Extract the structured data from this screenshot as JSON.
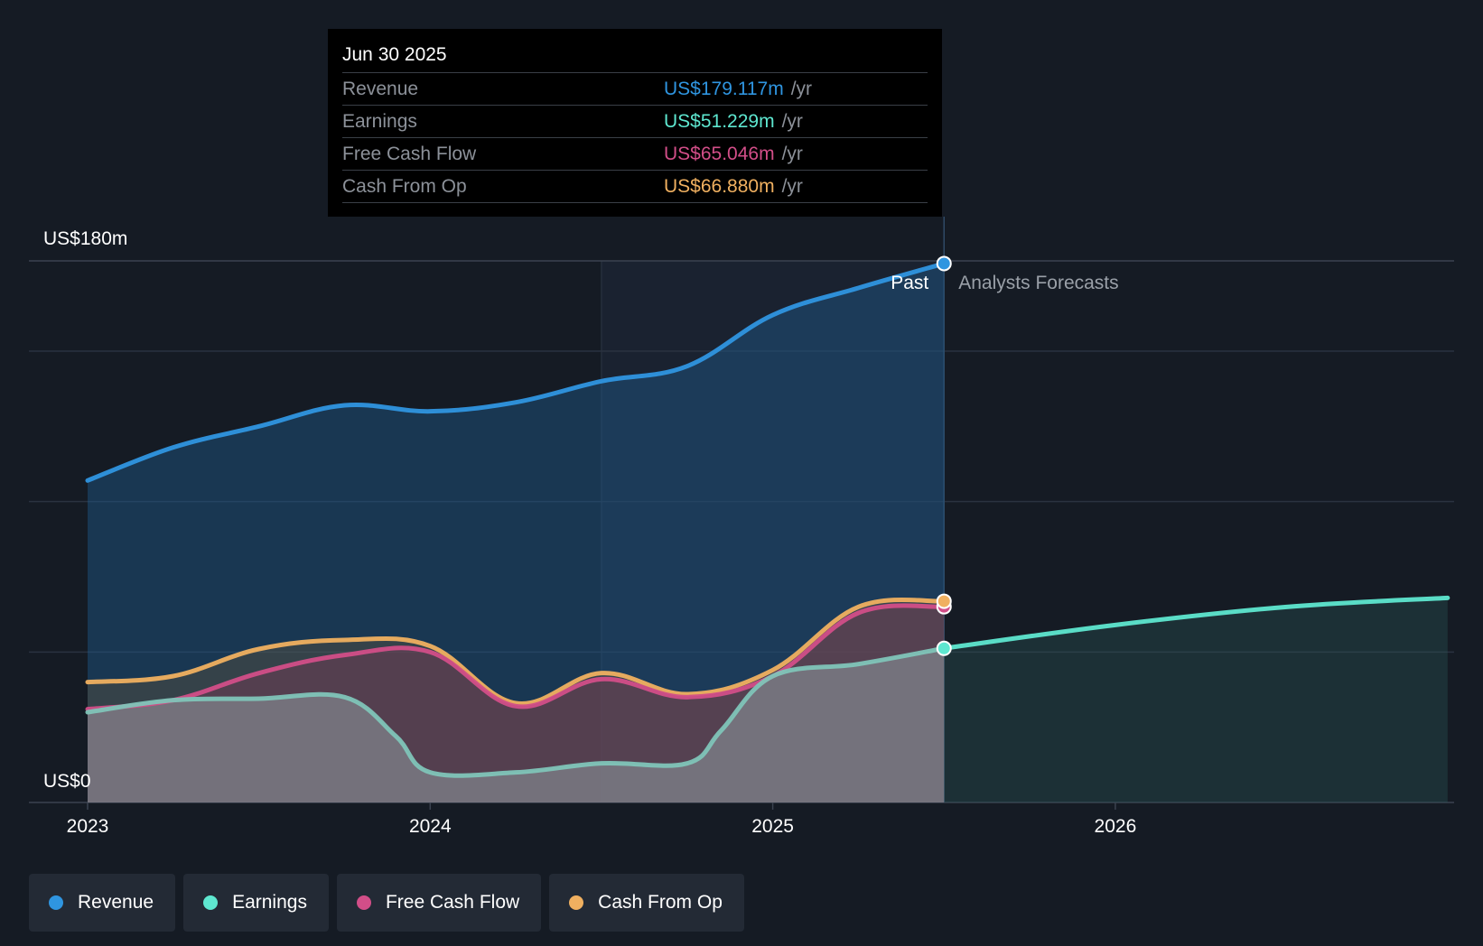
{
  "tooltip": {
    "date": "Jun 30 2025",
    "rows": [
      {
        "label": "Revenue",
        "value": "US$179.117m",
        "unit": "/yr",
        "color": "#2f95e0"
      },
      {
        "label": "Earnings",
        "value": "US$51.229m",
        "unit": "/yr",
        "color": "#5ee7d0"
      },
      {
        "label": "Free Cash Flow",
        "value": "US$65.046m",
        "unit": "/yr",
        "color": "#d24e88"
      },
      {
        "label": "Cash From Op",
        "value": "US$66.880m",
        "unit": "/yr",
        "color": "#f0b060"
      }
    ]
  },
  "legend": [
    {
      "label": "Revenue",
      "color": "#2f95e0"
    },
    {
      "label": "Earnings",
      "color": "#5ee7d0"
    },
    {
      "label": "Free Cash Flow",
      "color": "#d24e88"
    },
    {
      "label": "Cash From Op",
      "color": "#f0b060"
    }
  ],
  "chart_data": {
    "type": "line",
    "y_top_label": "US$180m",
    "y_bottom_label": "US$0",
    "ylim": [
      0,
      180
    ],
    "xlim": [
      2022.83,
      2026.97
    ],
    "x_ticks": [
      {
        "value": 2023,
        "label": "2023"
      },
      {
        "value": 2024,
        "label": "2024"
      },
      {
        "value": 2025,
        "label": "2025"
      },
      {
        "value": 2026,
        "label": "2026"
      }
    ],
    "past_label": "Past",
    "forecast_label": "Analysts Forecasts",
    "divider_x": 2025.5,
    "highlight_start_x": 2024.5,
    "series": [
      {
        "name": "Revenue",
        "color": "#2f95e0",
        "x": [
          2023.0,
          2023.25,
          2023.5,
          2023.75,
          2024.0,
          2024.25,
          2024.5,
          2024.75,
          2025.0,
          2025.25,
          2025.5
        ],
        "values": [
          107,
          118,
          125,
          132,
          130,
          133,
          140,
          145,
          162,
          171,
          179.117
        ]
      },
      {
        "name": "Earnings",
        "color": "#5ee7d0",
        "x": [
          2023.0,
          2023.25,
          2023.5,
          2023.75,
          2023.9,
          2024.0,
          2024.25,
          2024.5,
          2024.75,
          2024.85,
          2025.0,
          2025.25,
          2025.5
        ],
        "values": [
          30,
          34,
          34.5,
          35,
          22,
          10,
          10,
          13,
          13,
          24,
          42,
          46,
          51.229
        ]
      },
      {
        "name": "Free Cash Flow",
        "color": "#d24e88",
        "x": [
          2023.0,
          2023.25,
          2023.5,
          2023.75,
          2024.0,
          2024.25,
          2024.5,
          2024.75,
          2025.0,
          2025.25,
          2025.5
        ],
        "values": [
          31,
          34,
          43,
          49,
          50,
          32,
          41,
          35,
          42,
          63,
          65.046
        ]
      },
      {
        "name": "Cash From Op",
        "color": "#f0b060",
        "x": [
          2023.0,
          2023.25,
          2023.5,
          2023.75,
          2024.0,
          2024.25,
          2024.5,
          2024.75,
          2025.0,
          2025.25,
          2025.5
        ],
        "values": [
          40,
          42,
          51,
          54,
          52,
          33,
          43,
          36,
          44,
          65,
          66.88
        ]
      },
      {
        "name": "Earnings Forecast",
        "color": "#5ee7d0",
        "x": [
          2025.5,
          2026.0,
          2026.5,
          2026.97
        ],
        "values": [
          51.229,
          59,
          65,
          68
        ]
      }
    ]
  }
}
